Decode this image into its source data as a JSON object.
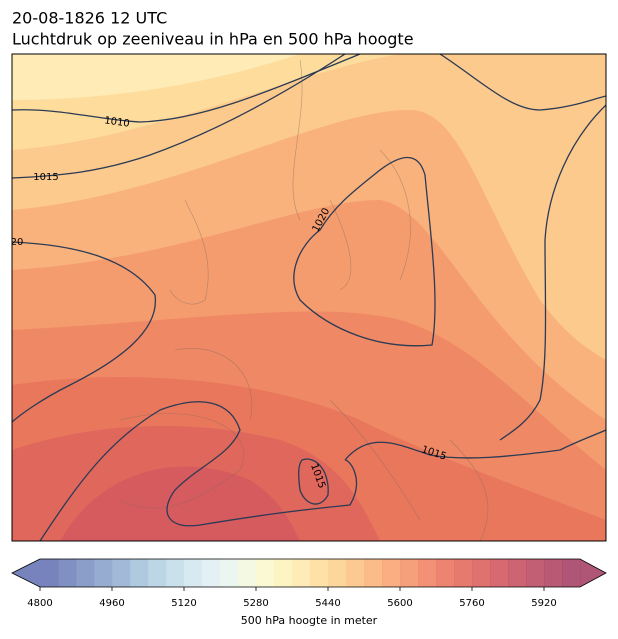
{
  "header": {
    "title": "20-08-1826 12 UTC",
    "subtitle": "Luchtdruk op zeeniveau in hPa en 500 hPa hoogte"
  },
  "isobar_labels": [
    "1010",
    "1015",
    "20",
    "1020",
    "1015",
    "1015"
  ],
  "colorbar": {
    "range": [
      4800,
      6000
    ],
    "ticks": [
      4800,
      4960,
      5120,
      5280,
      5440,
      5600,
      5760,
      5920
    ],
    "label": "500 hPa hoogte in meter",
    "colors": [
      "#5e6db0",
      "#6a7cb8",
      "#778cc0",
      "#849dc8",
      "#92aed1",
      "#a1bfd9",
      "#b1cfe2",
      "#c1dce9",
      "#d0e6ef",
      "#deeff2",
      "#e9f5ee",
      "#f2f8de",
      "#f9f8cc",
      "#fdf2ba",
      "#fee8a8",
      "#fedc98",
      "#fdcf8b",
      "#fcc07f",
      "#fbb075",
      "#f9a06c",
      "#f58f64",
      "#f07e5d",
      "#ea6f58",
      "#e26355",
      "#d95955",
      "#cf5057",
      "#c4495a",
      "#b9435c",
      "#ad3d5d",
      "#a1375d"
    ]
  }
}
